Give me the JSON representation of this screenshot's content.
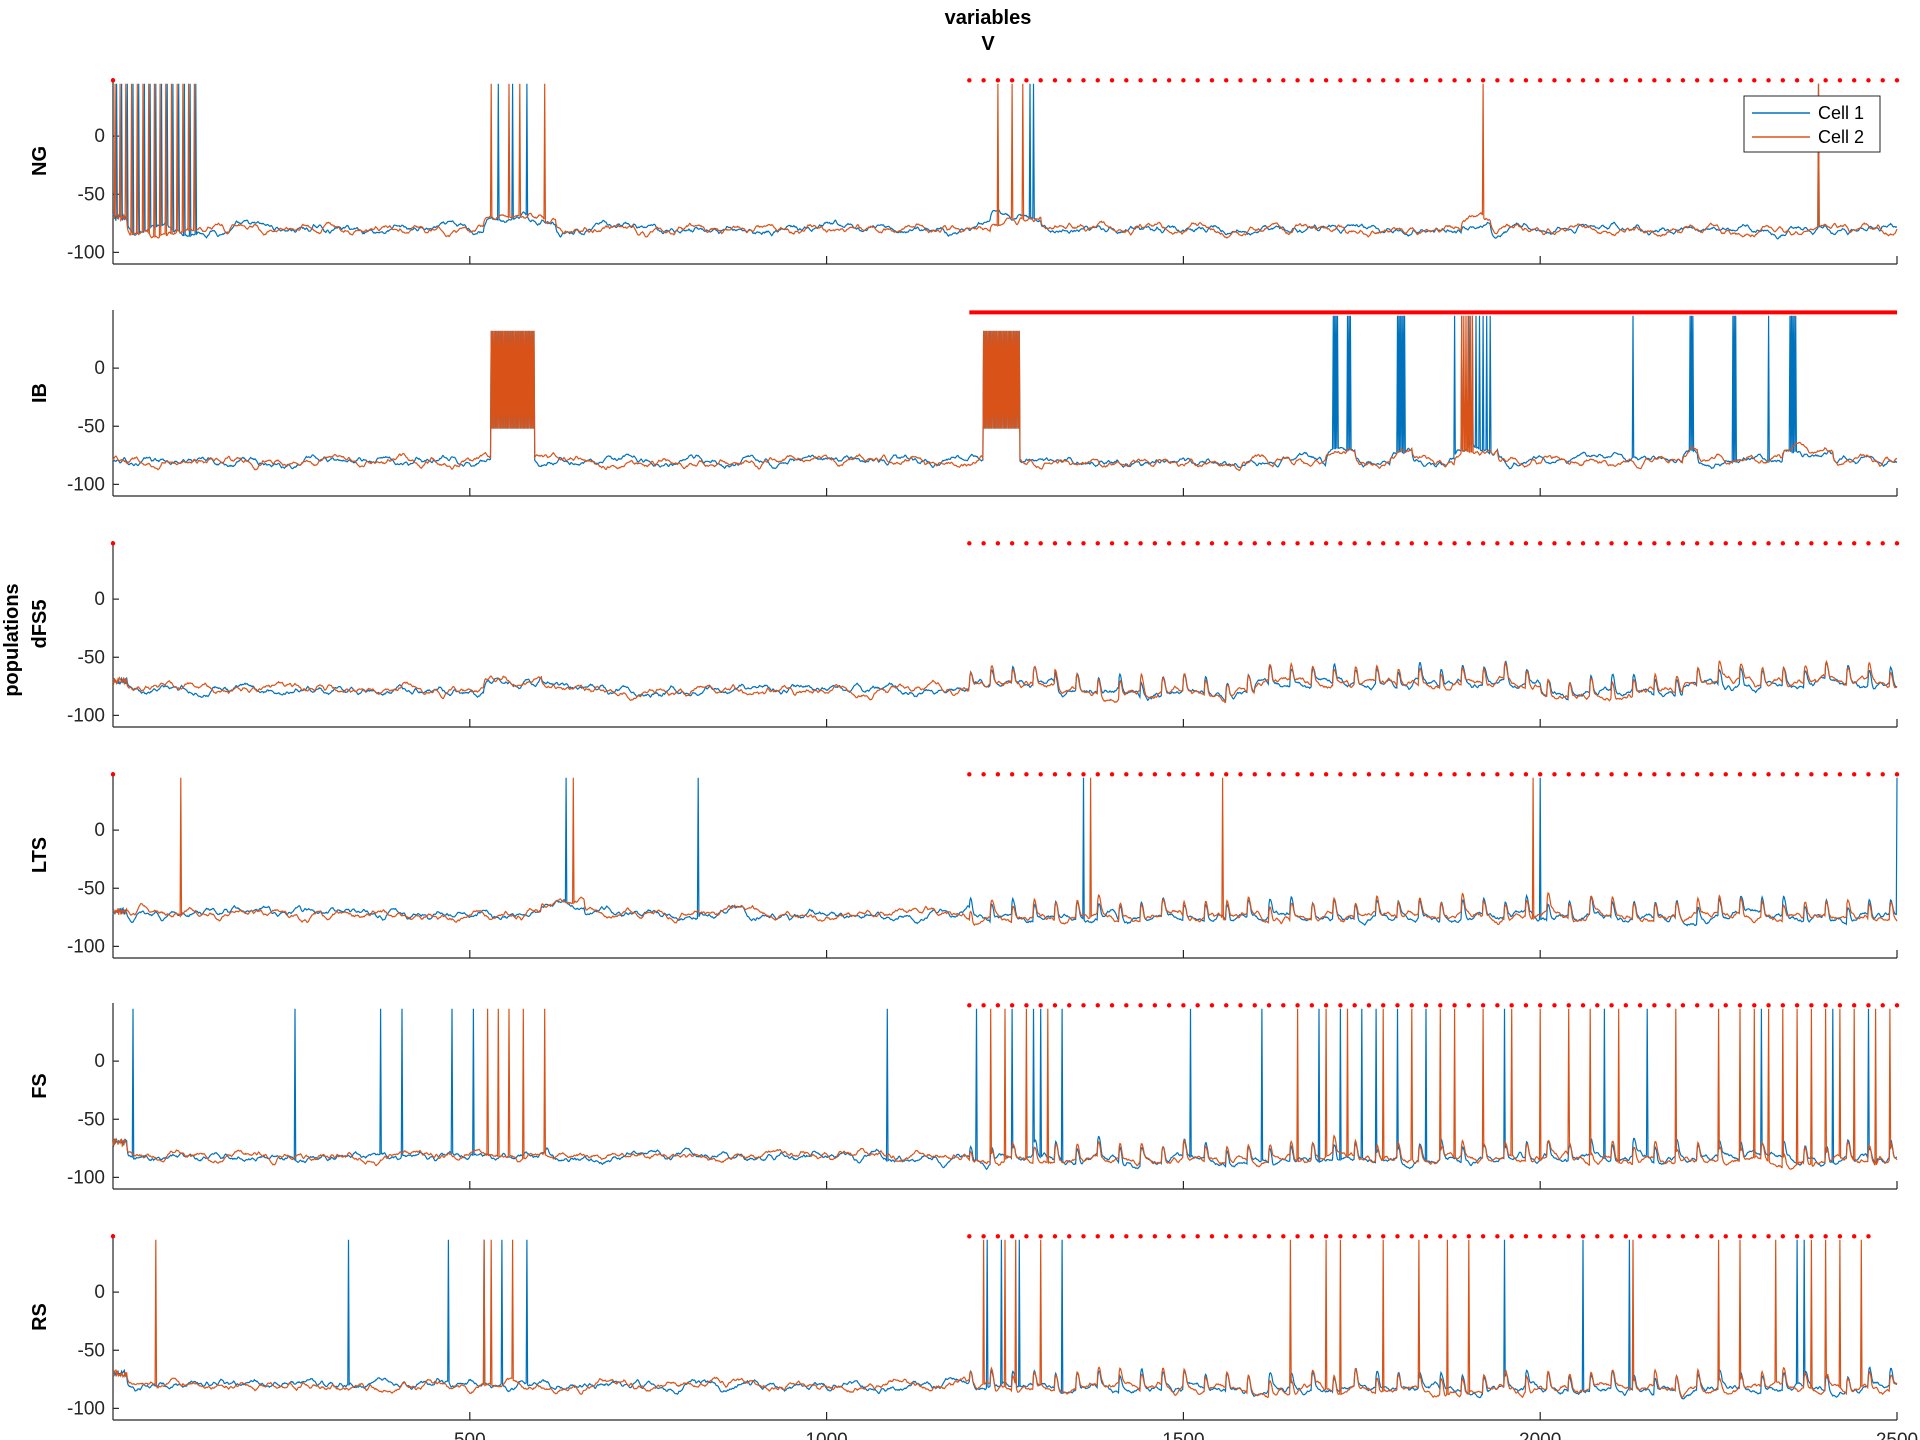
{
  "chart_data": {
    "type": "line",
    "title": [
      "variables",
      "V"
    ],
    "ylabel_group": [
      "populations"
    ],
    "xlim": [
      0,
      2500
    ],
    "ylim": [
      -110,
      50
    ],
    "xticks": [
      500,
      1000,
      1500,
      2000,
      2500
    ],
    "yticks": [
      0,
      -50,
      -100
    ],
    "colors": {
      "cell1": "#0072BD",
      "cell2": "#D95319",
      "marker": "#FF0000"
    },
    "legend": {
      "location": "top-right",
      "entries": [
        "Cell 1",
        "Cell 2"
      ]
    },
    "panels": [
      {
        "name": "NG",
        "baseline": -80,
        "noise": 3,
        "marker_style": "dotted",
        "marker_y": 48,
        "marker_ranges": [
          [
            1200,
            2500
          ]
        ],
        "marker_dots": [
          0
        ],
        "bursts": [],
        "spikes": {
          "cell1": [
            5,
            12,
            20,
            28,
            36,
            44,
            52,
            60,
            68,
            76,
            84,
            92,
            100,
            108,
            116,
            540,
            560,
            580,
            1285,
            1290,
            2390
          ],
          "cell2": [
            3,
            10,
            18,
            26,
            34,
            42,
            50,
            58,
            66,
            74,
            82,
            90,
            98,
            106,
            114,
            530,
            555,
            570,
            605,
            1240,
            1260,
            1275,
            1920,
            2390
          ]
        },
        "depolarized": [
          [
            520,
            620
          ],
          [
            1230,
            1300
          ],
          [
            1890,
            1930
          ]
        ]
      },
      {
        "name": "IB",
        "baseline": -80,
        "noise": 3,
        "marker_style": "solid",
        "marker_y": 48,
        "marker_ranges": [
          [
            1200,
            2500
          ]
        ],
        "marker_dots": [],
        "bursts": [
          [
            530,
            590
          ],
          [
            1220,
            1270
          ]
        ],
        "spikes": {
          "cell1": [
            1710,
            1712,
            1714,
            1716,
            1730,
            1732,
            1734,
            1800,
            1802,
            1804,
            1806,
            1808,
            1810,
            1880,
            1890,
            1900,
            1905,
            1910,
            1915,
            1920,
            1925,
            1930,
            2130,
            2210,
            2212,
            2214,
            2270,
            2272,
            2274,
            2320,
            2350,
            2352,
            2354,
            2356,
            2358
          ],
          "cell2": [
            1890,
            1893,
            1896,
            1899,
            1902,
            1905
          ]
        },
        "depolarized": [
          [
            1700,
            1740
          ],
          [
            1790,
            1820
          ],
          [
            1880,
            1940
          ],
          [
            2200,
            2220
          ],
          [
            2340,
            2410
          ]
        ]
      },
      {
        "name": "dFS5",
        "baseline": -78,
        "noise": 3,
        "marker_style": "dotted",
        "marker_y": 48,
        "marker_ranges": [
          [
            1200,
            2500
          ]
        ],
        "marker_dots": [
          0
        ],
        "bursts": [],
        "spikes": {
          "cell1": [],
          "cell2": []
        },
        "depolarized": [
          [
            520,
            600
          ],
          [
            1200,
            1320
          ],
          [
            1600,
            2000
          ],
          [
            2200,
            2500
          ]
        ],
        "oscillation": true
      },
      {
        "name": "LTS",
        "baseline": -72,
        "noise": 3,
        "marker_style": "dotted",
        "marker_y": 48,
        "marker_ranges": [
          [
            1200,
            2500
          ]
        ],
        "marker_dots": [
          0
        ],
        "bursts": [],
        "spikes": {
          "cell1": [
            635,
            820,
            1360,
            2000,
            2500
          ],
          "cell2": [
            95,
            645,
            1370,
            1555,
            1990
          ]
        },
        "depolarized": [
          [
            600,
            660
          ]
        ],
        "oscillation": true
      },
      {
        "name": "FS",
        "baseline": -82,
        "noise": 3,
        "marker_style": "dotted",
        "marker_y": 48,
        "marker_ranges": [
          [
            1200,
            2500
          ]
        ],
        "marker_dots": [],
        "bursts": [],
        "spikes": {
          "cell1": [
            28,
            255,
            375,
            405,
            475,
            505,
            1085,
            1210,
            1260,
            1290,
            1300,
            1330,
            1510,
            1610,
            1690,
            1720,
            1750,
            1770,
            1800,
            1840,
            1950,
            2090,
            2150,
            2310,
            2410,
            2460
          ],
          "cell2": [
            525,
            540,
            555,
            575,
            605,
            1230,
            1250,
            1280,
            1310,
            1660,
            1700,
            1730,
            1780,
            1820,
            1860,
            1880,
            1920,
            1960,
            2000,
            2040,
            2070,
            2110,
            2190,
            2250,
            2280,
            2300,
            2320,
            2340,
            2360,
            2380,
            2400,
            2420,
            2440,
            2470,
            2490
          ]
        },
        "depolarized": [],
        "oscillation": true
      },
      {
        "name": "RS",
        "baseline": -80,
        "noise": 3,
        "marker_style": "dotted",
        "marker_y": 48,
        "marker_ranges": [
          [
            1200,
            2460
          ]
        ],
        "marker_dots": [
          0
        ],
        "bursts": [],
        "spikes": {
          "cell1": [
            330,
            470,
            520,
            545,
            580,
            1225,
            1245,
            1270,
            1330,
            1950,
            2060,
            2125,
            2360,
            2370
          ],
          "cell2": [
            60,
            520,
            530,
            560,
            1220,
            1250,
            1265,
            1300,
            1650,
            1700,
            1720,
            1780,
            1830,
            1870,
            1900,
            2130,
            2250,
            2280,
            2330,
            2380,
            2400,
            2420,
            2450
          ]
        },
        "depolarized": [],
        "oscillation": true
      }
    ]
  }
}
